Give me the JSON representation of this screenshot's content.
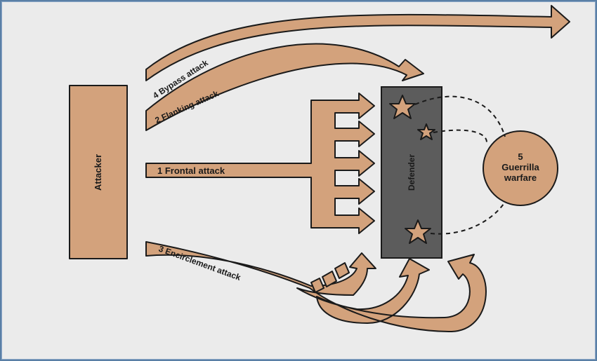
{
  "colors": {
    "arrow_fill": "#d3a27c",
    "stroke": "#1a1a1a",
    "defender_fill": "#5c5c5c",
    "background": "#ebebeb"
  },
  "diagram": {
    "attacker_label": "Attacker",
    "defender_label": "Defender",
    "guerrilla_number": "5",
    "guerrilla_line1": "Guerrilla",
    "guerrilla_line2": "warfare",
    "frontal_label": "1 Frontal attack",
    "flanking_label": "2 Flanking attack",
    "encirclement_label": "3 Encirclement attack",
    "bypass_label": "4 Bypass attack"
  }
}
